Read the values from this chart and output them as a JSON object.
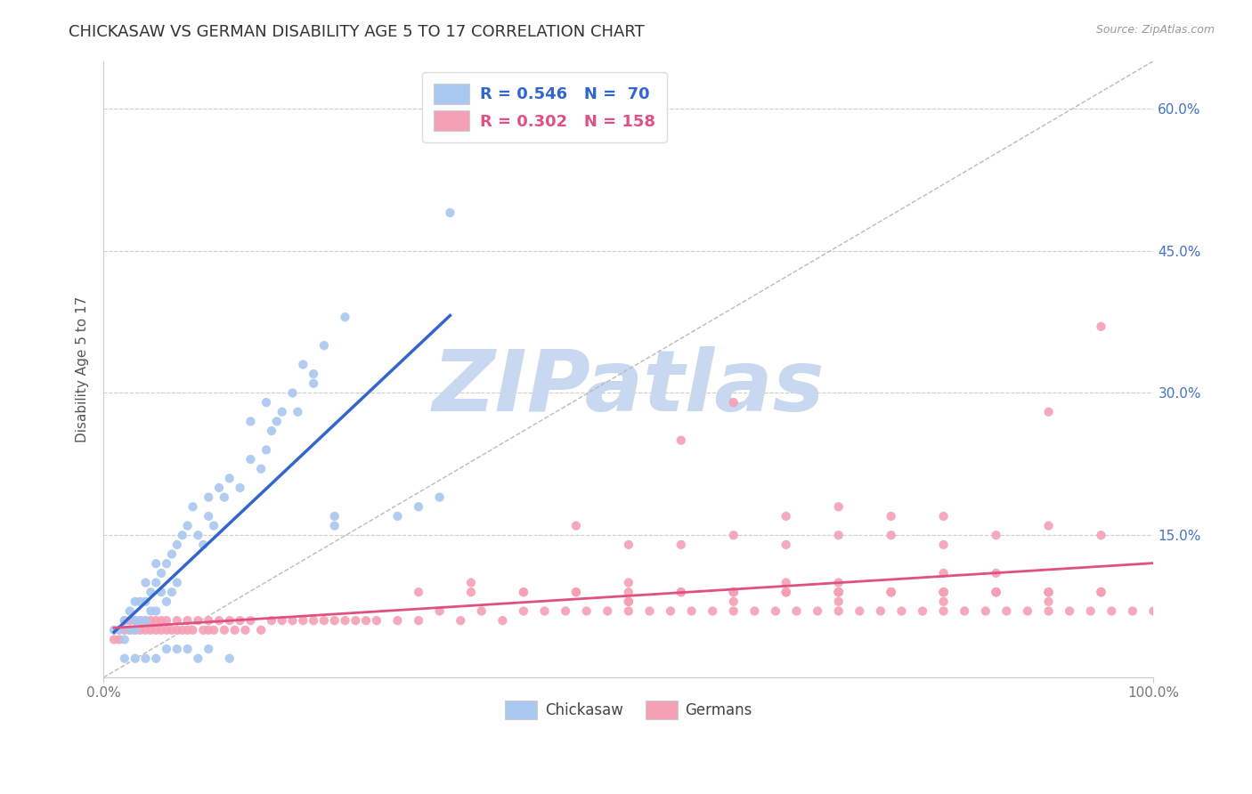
{
  "title": "CHICKASAW VS GERMAN DISABILITY AGE 5 TO 17 CORRELATION CHART",
  "source": "Source: ZipAtlas.com",
  "ylabel": "Disability Age 5 to 17",
  "xlim": [
    0.0,
    1.0
  ],
  "ylim": [
    0.0,
    0.65
  ],
  "ytick_positions": [
    0.0,
    0.15,
    0.3,
    0.45,
    0.6
  ],
  "ytick_labels": [
    "",
    "15.0%",
    "30.0%",
    "45.0%",
    "60.0%"
  ],
  "chickasaw_color": "#A8C8F0",
  "german_color": "#F5A0B5",
  "chickasaw_line_color": "#3366CC",
  "german_line_color": "#E05080",
  "ref_line_color": "#AAAAAA",
  "legend_r1": "R = 0.546",
  "legend_n1": "N =  70",
  "legend_r2": "R = 0.302",
  "legend_n2": "N = 158",
  "watermark": "ZIPatlas",
  "watermark_color": "#C8D8F0",
  "title_fontsize": 13,
  "axis_label_fontsize": 11,
  "tick_fontsize": 11,
  "legend_fontsize": 13,
  "chickasaw_x": [
    0.01,
    0.015,
    0.02,
    0.02,
    0.025,
    0.025,
    0.03,
    0.03,
    0.03,
    0.035,
    0.035,
    0.04,
    0.04,
    0.04,
    0.045,
    0.045,
    0.05,
    0.05,
    0.05,
    0.055,
    0.055,
    0.06,
    0.06,
    0.065,
    0.065,
    0.07,
    0.07,
    0.075,
    0.08,
    0.085,
    0.09,
    0.095,
    0.1,
    0.1,
    0.105,
    0.11,
    0.115,
    0.12,
    0.13,
    0.14,
    0.15,
    0.155,
    0.16,
    0.17,
    0.18,
    0.19,
    0.2,
    0.21,
    0.22,
    0.23,
    0.14,
    0.155,
    0.165,
    0.185,
    0.2,
    0.22,
    0.28,
    0.3,
    0.32,
    0.33,
    0.02,
    0.03,
    0.04,
    0.05,
    0.06,
    0.07,
    0.08,
    0.09,
    0.1,
    0.12
  ],
  "chickasaw_y": [
    0.05,
    0.05,
    0.04,
    0.06,
    0.05,
    0.07,
    0.05,
    0.06,
    0.08,
    0.06,
    0.08,
    0.06,
    0.08,
    0.1,
    0.07,
    0.09,
    0.07,
    0.1,
    0.12,
    0.09,
    0.11,
    0.08,
    0.12,
    0.09,
    0.13,
    0.1,
    0.14,
    0.15,
    0.16,
    0.18,
    0.15,
    0.14,
    0.17,
    0.19,
    0.16,
    0.2,
    0.19,
    0.21,
    0.2,
    0.23,
    0.22,
    0.24,
    0.26,
    0.28,
    0.3,
    0.33,
    0.32,
    0.35,
    0.16,
    0.38,
    0.27,
    0.29,
    0.27,
    0.28,
    0.31,
    0.17,
    0.17,
    0.18,
    0.19,
    0.49,
    0.02,
    0.02,
    0.02,
    0.02,
    0.03,
    0.03,
    0.03,
    0.02,
    0.03,
    0.02
  ],
  "german_x": [
    0.01,
    0.015,
    0.02,
    0.02,
    0.025,
    0.025,
    0.03,
    0.03,
    0.035,
    0.035,
    0.04,
    0.04,
    0.045,
    0.045,
    0.05,
    0.05,
    0.055,
    0.055,
    0.06,
    0.06,
    0.065,
    0.07,
    0.07,
    0.075,
    0.08,
    0.08,
    0.085,
    0.09,
    0.095,
    0.1,
    0.1,
    0.105,
    0.11,
    0.115,
    0.12,
    0.125,
    0.13,
    0.135,
    0.14,
    0.15,
    0.16,
    0.17,
    0.18,
    0.19,
    0.2,
    0.21,
    0.22,
    0.23,
    0.24,
    0.25,
    0.26,
    0.28,
    0.3,
    0.32,
    0.34,
    0.36,
    0.38,
    0.4,
    0.42,
    0.44,
    0.46,
    0.48,
    0.5,
    0.5,
    0.52,
    0.54,
    0.56,
    0.58,
    0.6,
    0.6,
    0.62,
    0.64,
    0.66,
    0.68,
    0.7,
    0.7,
    0.72,
    0.74,
    0.76,
    0.78,
    0.8,
    0.8,
    0.82,
    0.84,
    0.86,
    0.88,
    0.9,
    0.9,
    0.92,
    0.94,
    0.96,
    0.98,
    1.0,
    0.5,
    0.55,
    0.6,
    0.65,
    0.7,
    0.75,
    0.8,
    0.45,
    0.55,
    0.6,
    0.65,
    0.7,
    0.75,
    0.8,
    0.85,
    0.9,
    0.95,
    0.5,
    0.55,
    0.6,
    0.65,
    0.7,
    0.75,
    0.8,
    0.85,
    0.3,
    0.35,
    0.4,
    0.45,
    0.5,
    0.55,
    0.6,
    0.65,
    0.7,
    0.75,
    0.8,
    0.85,
    0.9,
    0.95,
    0.6,
    0.65,
    0.7,
    0.75,
    0.8,
    0.85,
    0.9,
    0.95,
    0.65,
    0.7,
    0.75,
    0.8,
    0.85,
    0.9,
    0.95,
    0.7,
    0.75,
    0.8,
    0.85,
    0.9,
    0.95,
    0.35,
    0.4,
    0.45,
    0.5,
    0.6
  ],
  "german_y": [
    0.04,
    0.04,
    0.05,
    0.06,
    0.05,
    0.06,
    0.05,
    0.06,
    0.05,
    0.06,
    0.05,
    0.06,
    0.05,
    0.06,
    0.05,
    0.06,
    0.05,
    0.06,
    0.05,
    0.06,
    0.05,
    0.05,
    0.06,
    0.05,
    0.05,
    0.06,
    0.05,
    0.06,
    0.05,
    0.05,
    0.06,
    0.05,
    0.06,
    0.05,
    0.06,
    0.05,
    0.06,
    0.05,
    0.06,
    0.05,
    0.06,
    0.06,
    0.06,
    0.06,
    0.06,
    0.06,
    0.06,
    0.06,
    0.06,
    0.06,
    0.06,
    0.06,
    0.06,
    0.07,
    0.06,
    0.07,
    0.06,
    0.07,
    0.07,
    0.07,
    0.07,
    0.07,
    0.07,
    0.08,
    0.07,
    0.07,
    0.07,
    0.07,
    0.07,
    0.08,
    0.07,
    0.07,
    0.07,
    0.07,
    0.07,
    0.08,
    0.07,
    0.07,
    0.07,
    0.07,
    0.07,
    0.08,
    0.07,
    0.07,
    0.07,
    0.07,
    0.07,
    0.08,
    0.07,
    0.07,
    0.07,
    0.07,
    0.07,
    0.14,
    0.14,
    0.15,
    0.14,
    0.15,
    0.15,
    0.14,
    0.16,
    0.25,
    0.29,
    0.17,
    0.18,
    0.17,
    0.17,
    0.15,
    0.16,
    0.15,
    0.1,
    0.09,
    0.09,
    0.1,
    0.09,
    0.09,
    0.09,
    0.09,
    0.09,
    0.09,
    0.09,
    0.09,
    0.09,
    0.09,
    0.09,
    0.09,
    0.1,
    0.09,
    0.11,
    0.11,
    0.28,
    0.37,
    0.09,
    0.09,
    0.09,
    0.09,
    0.09,
    0.09,
    0.09,
    0.09,
    0.09,
    0.09,
    0.09,
    0.09,
    0.09,
    0.09,
    0.09,
    0.09,
    0.09,
    0.09,
    0.09,
    0.09,
    0.09,
    0.1,
    0.09,
    0.09,
    0.08,
    0.09
  ]
}
